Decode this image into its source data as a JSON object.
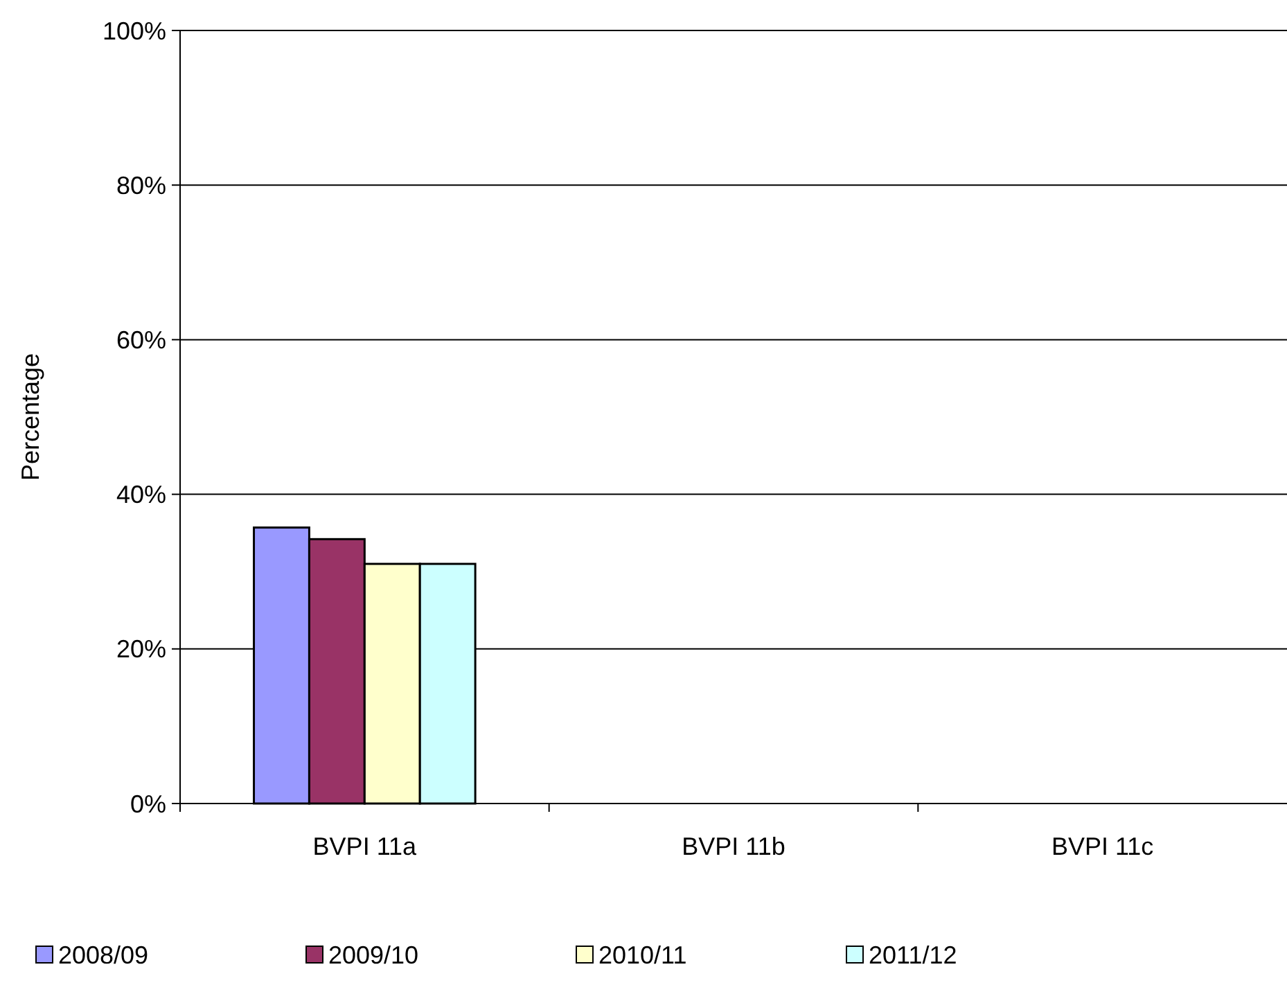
{
  "chart_data": {
    "type": "bar",
    "ylabel": "Percentage",
    "categories": [
      "BVPI 11a",
      "BVPI 11b",
      "BVPI 11c"
    ],
    "series": [
      {
        "name": "2008/09",
        "color": "#9999ff",
        "values": [
          35.7,
          null,
          null
        ]
      },
      {
        "name": "2009/10",
        "color": "#993366",
        "values": [
          34.2,
          null,
          null
        ]
      },
      {
        "name": "2010/11",
        "color": "#ffffcc",
        "values": [
          31,
          null,
          null
        ]
      },
      {
        "name": "2011/12",
        "color": "#ccffff",
        "values": [
          31,
          null,
          null
        ]
      }
    ],
    "ylim": [
      0,
      100
    ],
    "yticks": [
      {
        "value": 0,
        "label": "0%"
      },
      {
        "value": 20,
        "label": "20%"
      },
      {
        "value": 40,
        "label": "40%"
      },
      {
        "value": 60,
        "label": "60%"
      },
      {
        "value": 80,
        "label": "80%"
      },
      {
        "value": 100,
        "label": "100%"
      }
    ],
    "grid": "y",
    "legend": "bottom"
  }
}
